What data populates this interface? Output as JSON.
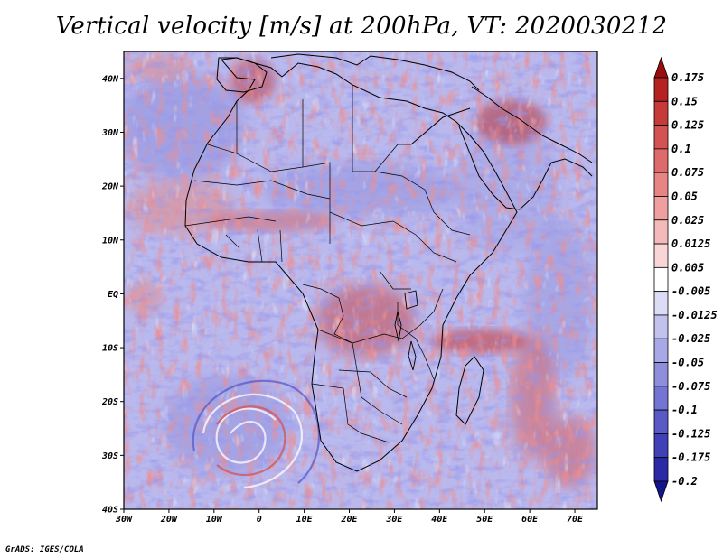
{
  "title": "Vertical velocity [m/s] at 200hPa, VT: 2020030212",
  "credit": "GrADS: IGES/COLA",
  "lat_labels": [
    "40N",
    "30N",
    "20N",
    "10N",
    "EQ",
    "10S",
    "20S",
    "30S",
    "40S"
  ],
  "lat_values": [
    40,
    30,
    20,
    10,
    0,
    -10,
    -20,
    -30,
    -40
  ],
  "lon_labels": [
    "30W",
    "20W",
    "10W",
    "0",
    "10E",
    "20E",
    "30E",
    "40E",
    "50E",
    "60E",
    "70E"
  ],
  "lon_values": [
    -30,
    -20,
    -10,
    0,
    10,
    20,
    30,
    40,
    50,
    60,
    70
  ],
  "domain": {
    "lon_min": -30,
    "lon_max": 75,
    "lat_min": -40,
    "lat_max": 45
  },
  "colorbar": {
    "labels": [
      "0.175",
      "0.15",
      "0.125",
      "0.1",
      "0.075",
      "0.05",
      "0.025",
      "0.0125",
      "0.005",
      "-0.005",
      "-0.0125",
      "-0.025",
      "-0.05",
      "-0.075",
      "-0.1",
      "-0.125",
      "-0.175",
      "-0.2"
    ],
    "colors": [
      "#9b0d0d",
      "#b52222",
      "#c73a3a",
      "#d45252",
      "#de6b6b",
      "#e78585",
      "#ef9f9f",
      "#f4baba",
      "#f9d6d6",
      "#ffffff",
      "#dcdcf6",
      "#c2c2ef",
      "#a8a8e6",
      "#8e8edd",
      "#7474d2",
      "#5a5ac6",
      "#4040b8",
      "#2a2aa6",
      "#14148e"
    ]
  }
}
